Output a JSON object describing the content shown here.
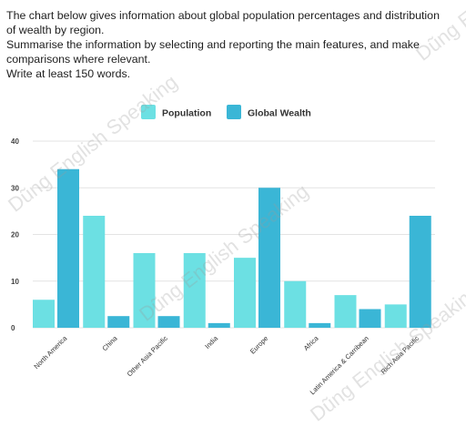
{
  "prompt": {
    "lines": [
      "The chart below gives information about global population percentages and distribution",
      "of wealth by region.",
      "Summarise the information by selecting and reporting the main features, and make",
      "comparisons where relevant.",
      "Write at least 150 words."
    ]
  },
  "watermark": "Dũng English Speaking",
  "chart_data": {
    "type": "bar",
    "categories": [
      "North America",
      "China",
      "Other Asia Pacific",
      "India",
      "Europe",
      "Africa",
      "Latin America & Carribean",
      "Rich Asia Pacific"
    ],
    "series": [
      {
        "name": "Population",
        "values": [
          6,
          24,
          16,
          16,
          15,
          10,
          7,
          5
        ],
        "color": "#6ce0e3"
      },
      {
        "name": "Global Wealth",
        "values": [
          34,
          2.5,
          2.5,
          1,
          30,
          1,
          4,
          24
        ],
        "color": "#3ab6d6"
      }
    ],
    "ylim": [
      0,
      40
    ],
    "yticks": [
      "0",
      "10",
      "20",
      "30",
      "40"
    ],
    "grid": true,
    "legend": "top-center",
    "xlabel": "",
    "ylabel": ""
  }
}
